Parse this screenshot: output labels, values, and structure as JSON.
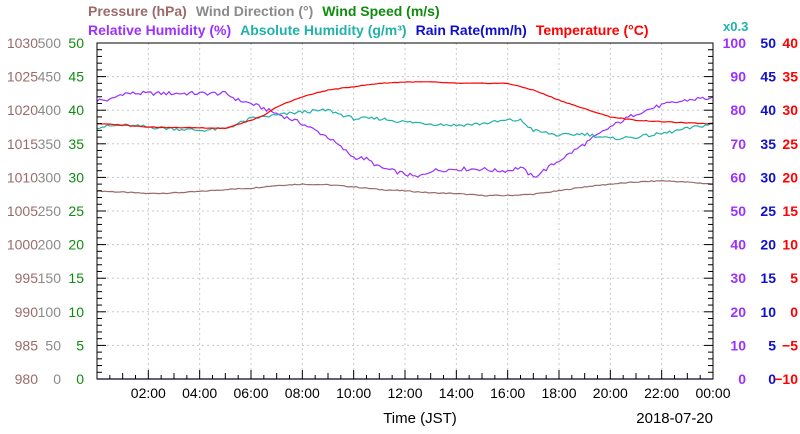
{
  "chart_data": {
    "type": "line",
    "title_rows": [
      [
        {
          "text": "Pressure (hPa)",
          "color": "#9b6b6b"
        },
        {
          "text": "Wind Direction (°)",
          "color": "#8a8a8a"
        },
        {
          "text": "Wind Speed (m/s)",
          "color": "#0f8c0f"
        }
      ],
      [
        {
          "text": "Relative Humidity (%)",
          "color": "#9b30ff"
        },
        {
          "text": "Absolute Humidity (g/m³)",
          "color": "#20b2aa"
        },
        {
          "text": "Rain Rate(mm/h)",
          "color": "#1010cc"
        },
        {
          "text": "Temperature (°C)",
          "color": "#ff0000"
        }
      ]
    ],
    "multiplier_label": "x0.3",
    "xlabel": "Time (JST)",
    "date_label": "2018-07-20",
    "x_tick_labels": [
      "02:00",
      "04:00",
      "06:00",
      "08:00",
      "10:00",
      "12:00",
      "14:00",
      "16:00",
      "18:00",
      "20:00",
      "22:00",
      "00:00"
    ],
    "xlim_hours": [
      0,
      24
    ],
    "left_axes": [
      {
        "name": "Pressure (hPa)",
        "color": "#9b6b6b",
        "ticks": [
          "980",
          "985",
          "990",
          "995",
          "1000",
          "1005",
          "1010",
          "1015",
          "1020",
          "1025",
          "1030"
        ]
      },
      {
        "name": "Wind Direction (°)",
        "color": "#8a8a8a",
        "ticks": [
          "0",
          "50",
          "100",
          "150",
          "200",
          "250",
          "300",
          "350",
          "400",
          "450",
          "500"
        ]
      },
      {
        "name": "Wind Speed (m/s)",
        "color": "#0f8c0f",
        "ticks": [
          "0",
          "5",
          "10",
          "15",
          "20",
          "25",
          "30",
          "35",
          "40",
          "45",
          "50"
        ]
      }
    ],
    "right_axes": [
      {
        "name": "Relative Humidity (%)",
        "color": "#9b30ff",
        "ticks": [
          "0",
          "10",
          "20",
          "30",
          "40",
          "50",
          "60",
          "70",
          "80",
          "90",
          "100"
        ]
      },
      {
        "name": "Rain Rate(mm/h)",
        "color": "#1010cc",
        "ticks": [
          "0",
          "5",
          "10",
          "15",
          "20",
          "25",
          "30",
          "35",
          "40",
          "45",
          "50"
        ]
      },
      {
        "name": "Temperature (°C)",
        "color": "#ff0000",
        "ticks": [
          "−10",
          "−5",
          "0",
          "5",
          "10",
          "15",
          "20",
          "25",
          "30",
          "35",
          "40"
        ]
      }
    ],
    "series": [
      {
        "name": "Pressure (hPa)",
        "color": "#9b6b6b",
        "ylim": [
          980,
          1030
        ],
        "x": [
          0,
          1,
          2,
          3,
          4,
          5,
          6,
          7,
          8,
          9,
          10,
          11,
          12,
          13,
          14,
          15,
          16,
          17,
          18,
          19,
          20,
          21,
          22,
          23,
          24
        ],
        "y": [
          1008,
          1007.8,
          1007.6,
          1007.7,
          1007.9,
          1008.2,
          1008.4,
          1008.8,
          1009,
          1008.9,
          1008.6,
          1008.2,
          1008,
          1007.7,
          1007.6,
          1007.3,
          1007.3,
          1007.5,
          1008,
          1008.6,
          1009,
          1009.3,
          1009.5,
          1009.3,
          1009
        ]
      },
      {
        "name": "Relative Humidity (%)",
        "color": "#9b30ff",
        "ylim": [
          0,
          100
        ],
        "x": [
          0,
          0.5,
          1,
          2,
          3,
          4,
          5,
          5.5,
          6,
          7,
          7.5,
          8,
          9,
          9.5,
          10,
          10.5,
          11,
          12,
          12.5,
          13,
          14,
          15,
          15.5,
          16,
          16.5,
          17,
          18,
          19,
          20,
          21,
          22,
          23,
          23.5,
          24
        ],
        "y": [
          83,
          83,
          85,
          85,
          85,
          85,
          85,
          83,
          82,
          79,
          77.5,
          76,
          72,
          69,
          66,
          65.5,
          63,
          61,
          60,
          62,
          62.5,
          62.5,
          62,
          62,
          63,
          60,
          65,
          70,
          75,
          79,
          81.5,
          83,
          83.5,
          83.5
        ]
      },
      {
        "name": "Absolute Humidity (g/m³)",
        "color": "#20b2aa",
        "ylim": [
          0,
          100
        ],
        "x": [
          0,
          1,
          2,
          3,
          4,
          5,
          6,
          7,
          8,
          9,
          10,
          11,
          12,
          13,
          14,
          15,
          16,
          16.5,
          17,
          18,
          19,
          20,
          21,
          22,
          23,
          24
        ],
        "y": [
          75,
          75.5,
          75,
          74.5,
          74,
          74.5,
          77.5,
          78.5,
          79.5,
          80,
          77.5,
          77.5,
          76.5,
          76,
          75.5,
          76,
          77,
          77,
          74,
          72.5,
          73,
          71.5,
          72,
          73,
          74.5,
          76
        ]
      },
      {
        "name": "Temperature (°C)",
        "color": "#ff0000",
        "ylim": [
          -10,
          40
        ],
        "x": [
          0,
          1,
          2,
          3,
          4,
          5,
          6,
          6.5,
          7,
          8,
          9,
          10,
          11,
          12,
          13,
          14,
          15,
          16,
          17,
          18,
          19,
          20,
          21,
          22,
          23,
          24
        ],
        "y": [
          28,
          27.8,
          27.5,
          27.4,
          27.4,
          27.3,
          28.5,
          29.2,
          30.5,
          32,
          33,
          33.5,
          34,
          34.2,
          34.2,
          34,
          34,
          34,
          33,
          31.5,
          30.2,
          29,
          28.5,
          28.3,
          28.1,
          28
        ]
      },
      {
        "name": "Rain Rate(mm/h)",
        "color": "#1010cc",
        "ylim": [
          0,
          50
        ],
        "x": [
          0,
          24
        ],
        "y": [
          0,
          0
        ]
      }
    ]
  }
}
